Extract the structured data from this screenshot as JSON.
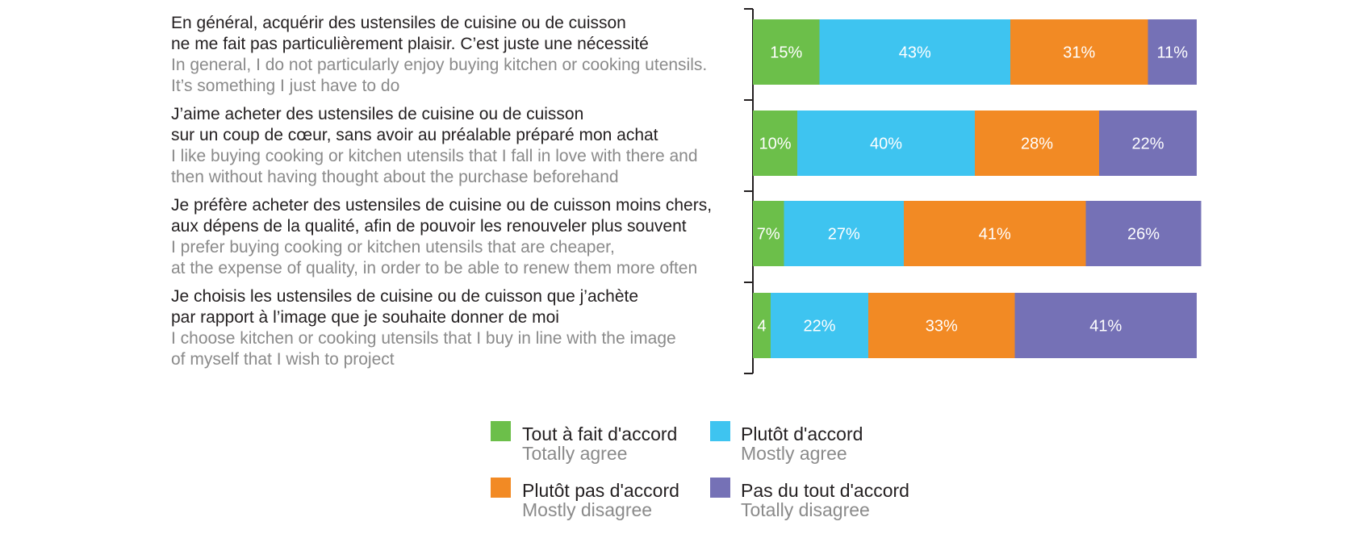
{
  "chart_data": {
    "type": "bar",
    "orientation": "horizontal",
    "stacked": true,
    "title": "",
    "xlabel": "",
    "ylabel": "",
    "xlim": [
      0,
      100
    ],
    "grid": false,
    "legend_position": "bottom",
    "categories": [
      {
        "fr": [
          "En général, acquérir des ustensiles de cuisine ou de cuisson",
          "ne me fait pas particulièrement plaisir. C’est juste une nécessité"
        ],
        "en": [
          "In general, I do not particularly enjoy buying kitchen or cooking utensils.",
          "It’s something I just have to do"
        ]
      },
      {
        "fr": [
          "J’aime acheter des ustensiles de cuisine ou de cuisson",
          "sur un coup de cœur, sans avoir au préalable préparé mon achat"
        ],
        "en": [
          "I like buying cooking or kitchen utensils that I fall in love with there and",
          "then without having thought about the purchase beforehand"
        ]
      },
      {
        "fr": [
          "Je préfère acheter des ustensiles de cuisine ou de cuisson moins chers,",
          "aux dépens de la qualité, afin de pouvoir les renouveler plus souvent"
        ],
        "en": [
          "I prefer buying cooking or kitchen utensils that are cheaper,",
          "at the expense of quality, in order to be able to renew them more often"
        ]
      },
      {
        "fr": [
          "Je choisis les ustensiles de cuisine ou de cuisson que j’achète",
          "par rapport à l’image que je souhaite donner de moi"
        ],
        "en": [
          "I choose kitchen or cooking utensils that I buy in line with the image",
          "of myself that I wish to project"
        ]
      }
    ],
    "series": [
      {
        "name": "Tout à fait d'accord",
        "name_en": "Totally agree",
        "color": "#6cbf4a",
        "values": [
          15,
          10,
          7,
          4
        ],
        "labels": [
          "15%",
          "10%",
          "7%",
          "4"
        ]
      },
      {
        "name": "Plutôt d'accord",
        "name_en": "Mostly agree",
        "color": "#3ec4f0",
        "values": [
          43,
          40,
          27,
          22
        ],
        "labels": [
          "43%",
          "40%",
          "27%",
          "22%"
        ]
      },
      {
        "name": "Plutôt pas d'accord",
        "name_en": "Mostly disagree",
        "color": "#f28a24",
        "values": [
          31,
          28,
          41,
          33
        ],
        "labels": [
          "31%",
          "28%",
          "41%",
          "33%"
        ]
      },
      {
        "name": "Pas du tout d'accord",
        "name_en": "Totally disagree",
        "color": "#7571b6",
        "values": [
          11,
          22,
          26,
          41
        ],
        "labels": [
          "11%",
          "22%",
          "26%",
          "41%"
        ]
      }
    ]
  }
}
